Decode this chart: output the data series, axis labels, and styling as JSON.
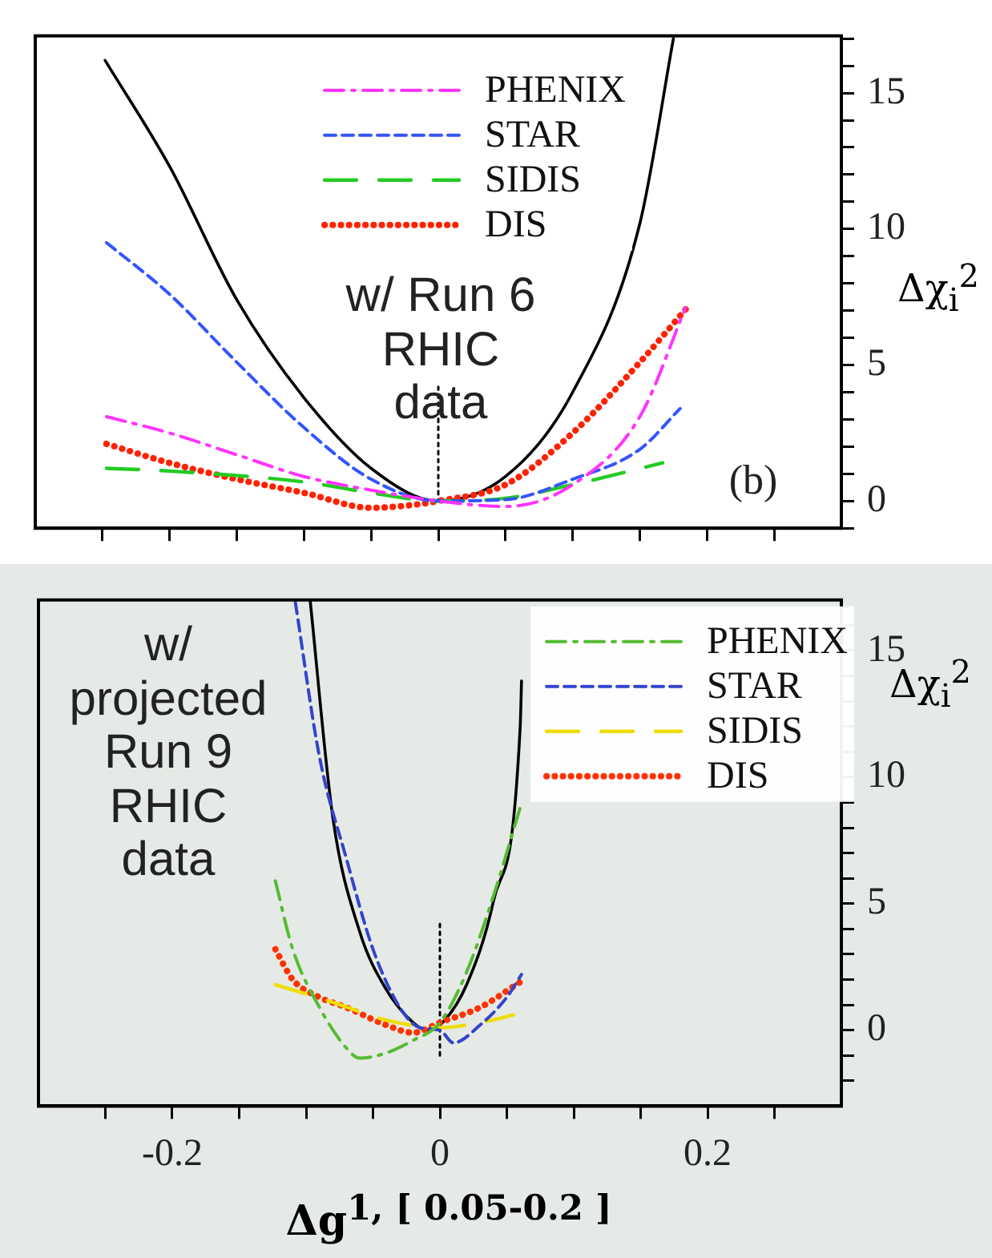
{
  "chart_data": [
    {
      "type": "line",
      "ylabel": "Δχ$_{i}$$^{2}$",
      "xlim": [
        -0.3,
        0.3
      ],
      "ylim": [
        -1,
        17.1
      ],
      "xticks": [
        {
          "value": -0.25,
          "label": null
        },
        {
          "value": -0.2,
          "label": null
        },
        {
          "value": -0.15,
          "label": null
        },
        {
          "value": -0.1,
          "label": null
        },
        {
          "value": -0.05,
          "label": null
        },
        {
          "value": 0,
          "label": null
        },
        {
          "value": 0.05,
          "label": null
        },
        {
          "value": 0.1,
          "label": null
        },
        {
          "value": 0.15,
          "label": null
        },
        {
          "value": 0.2,
          "label": null
        },
        {
          "value": 0.25,
          "label": null
        }
      ],
      "yticks": [
        {
          "value": -1,
          "label": null
        },
        0,
        {
          "value": 1,
          "label": null
        },
        {
          "value": 2,
          "label": null
        },
        {
          "value": 3,
          "label": null
        },
        {
          "value": 4,
          "label": null
        },
        5,
        {
          "value": 6,
          "label": null
        },
        {
          "value": 7,
          "label": null
        },
        {
          "value": 8,
          "label": null
        },
        {
          "value": 9,
          "label": null
        },
        10,
        {
          "value": 11,
          "label": null
        },
        {
          "value": 12,
          "label": null
        },
        {
          "value": 13,
          "label": null
        },
        {
          "value": 14,
          "label": null
        },
        15,
        {
          "value": 16,
          "label": null
        },
        {
          "value": 17,
          "label": null
        }
      ],
      "tick_labels": "y",
      "grid": false,
      "legend": "top",
      "marker": "none",
      "annotations": [
        "w/ Run 6\nRHIC\ndata",
        "(b)"
      ],
      "series": [
        {
          "name": "PHENIX",
          "color": "#ff33ff",
          "line_style": "dashdot",
          "x": [
            -0.247,
            -0.2,
            -0.15,
            -0.1,
            -0.05,
            0,
            0.05,
            0.1,
            0.15,
            0.184
          ],
          "values": [
            3.1,
            2.5,
            1.7,
            0.9,
            0.4,
            0,
            -0.2,
            0.6,
            3.1,
            7.1
          ]
        },
        {
          "name": "STAR",
          "color": "#3355ff",
          "line_style": "dashed",
          "x": [
            -0.247,
            -0.2,
            -0.15,
            -0.1,
            -0.05,
            0,
            0.05,
            0.1,
            0.15,
            0.18
          ],
          "values": [
            9.5,
            7.6,
            5.1,
            2.7,
            0.8,
            0,
            0.05,
            0.8,
            1.9,
            3.4
          ]
        },
        {
          "name": "SIDIS",
          "color": "#22cc22",
          "line_style": "longdash",
          "x": [
            -0.247,
            -0.2,
            -0.1,
            -0.05,
            0,
            0.05,
            0.1,
            0.167
          ],
          "values": [
            1.2,
            1.1,
            0.7,
            0.3,
            0,
            0.1,
            0.6,
            1.4
          ]
        },
        {
          "name": "DIS",
          "color": "#ff2200",
          "line_style": "dotted",
          "x": [
            -0.247,
            -0.2,
            -0.15,
            -0.1,
            -0.05,
            -0.02,
            0,
            0.05,
            0.1,
            0.15,
            0.185
          ],
          "values": [
            2.1,
            1.4,
            0.8,
            0.3,
            -0.25,
            -0.15,
            0,
            0.6,
            2.5,
            5.1,
            7.1
          ]
        },
        {
          "color": "#000000",
          "line_style": "solid",
          "x": [
            -0.248,
            -0.2,
            -0.15,
            -0.1,
            -0.05,
            0,
            0.05,
            0.1,
            0.15,
            0.175
          ],
          "values": [
            16.2,
            12.3,
            7.4,
            3.8,
            1.2,
            0,
            0.9,
            4.0,
            10.2,
            17
          ]
        },
        {
          "color": "#000000",
          "line_style": "finedot",
          "x": [
            0,
            0
          ],
          "values": [
            4.2,
            0
          ]
        }
      ]
    },
    {
      "type": "line",
      "xlabel": "Δg$^{1, [ 0.05-0.2 ]}$",
      "ylabel": "Δχ$_{i}$$^{2}$",
      "xlim": [
        -0.3,
        0.3
      ],
      "ylim": [
        -3,
        17
      ],
      "xticks": [
        {
          "value": -0.25,
          "label": null
        },
        -0.2,
        {
          "value": -0.15,
          "label": null
        },
        {
          "value": -0.1,
          "label": null
        },
        {
          "value": -0.05,
          "label": null
        },
        0,
        {
          "value": 0.05,
          "label": null
        },
        {
          "value": 0.1,
          "label": null
        },
        {
          "value": 0.15,
          "label": null
        },
        0.2,
        {
          "value": 0.25,
          "label": null
        }
      ],
      "yticks": [
        {
          "value": -2,
          "label": null
        },
        {
          "value": -1,
          "label": null
        },
        0,
        {
          "value": 1,
          "label": null
        },
        {
          "value": 2,
          "label": null
        },
        {
          "value": 3,
          "label": null
        },
        {
          "value": 4,
          "label": null
        },
        5,
        {
          "value": 6,
          "label": null
        },
        {
          "value": 7,
          "label": null
        },
        {
          "value": 8,
          "label": null
        },
        {
          "value": 9,
          "label": null
        },
        10,
        {
          "value": 11,
          "label": null
        },
        {
          "value": 12,
          "label": null
        },
        {
          "value": 13,
          "label": null
        },
        {
          "value": 14,
          "label": null
        },
        15,
        {
          "value": 16,
          "label": null
        }
      ],
      "grid": false,
      "legend": "top right",
      "marker": "none",
      "annotations": [
        "w/\nprojected\nRun 9\nRHIC\ndata"
      ],
      "series": [
        {
          "name": "PHENIX",
          "color": "#55bb33",
          "line_style": "dashdot",
          "x": [
            -0.123,
            -0.11,
            -0.09,
            -0.07,
            -0.06,
            -0.04,
            -0.02,
            0,
            0.02,
            0.04,
            0.06
          ],
          "values": [
            5.9,
            3.2,
            0.9,
            -0.7,
            -1.1,
            -0.9,
            -0.4,
            0.3,
            2.3,
            5.3,
            8.8
          ]
        },
        {
          "name": "STAR",
          "color": "#3344cc",
          "line_style": "dashed",
          "x": [
            -0.108,
            -0.09,
            -0.07,
            -0.05,
            -0.03,
            -0.015,
            0,
            0.01,
            0.03,
            0.05,
            0.061
          ],
          "values": [
            16.9,
            10.8,
            6.8,
            3.2,
            0.9,
            0.1,
            0,
            -0.5,
            0.2,
            1.3,
            2.2
          ]
        },
        {
          "name": "SIDIS",
          "color": "#eedd00",
          "line_style": "longdash",
          "x": [
            -0.123,
            -0.08,
            -0.04,
            0,
            0.03,
            0.055
          ],
          "values": [
            1.8,
            1.1,
            0.4,
            0.1,
            0.3,
            0.6
          ]
        },
        {
          "name": "DIS",
          "color": "#ff3300",
          "line_style": "dotted",
          "x": [
            -0.123,
            -0.11,
            -0.09,
            -0.07,
            -0.04,
            -0.02,
            0,
            0.03,
            0.06
          ],
          "values": [
            3.2,
            2.0,
            1.3,
            0.9,
            0.2,
            -0.1,
            0.3,
            0.9,
            1.9
          ]
        },
        {
          "color": "#000000",
          "line_style": "solid",
          "x": [
            -0.097,
            -0.08,
            -0.06,
            -0.04,
            -0.02,
            -0.01,
            0,
            0.02,
            0.04,
            0.06,
            0.061
          ],
          "values": [
            17,
            8.4,
            3.9,
            1.6,
            0.3,
            0,
            0.2,
            1.8,
            5.1,
            12.0,
            13.8
          ]
        },
        {
          "color": "#000000",
          "line_style": "finedot",
          "x": [
            0,
            0
          ],
          "values": [
            4.2,
            -1
          ]
        }
      ]
    }
  ]
}
